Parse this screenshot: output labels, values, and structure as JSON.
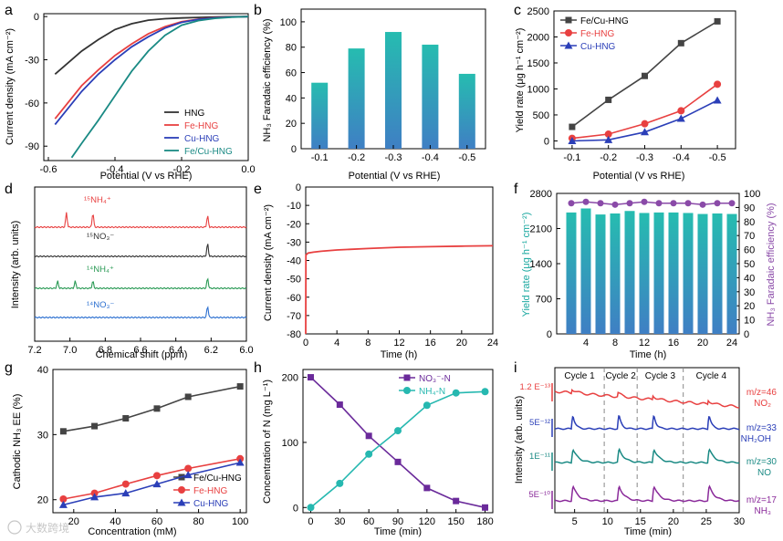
{
  "figure": {
    "watermark": "大数跨境"
  },
  "chart_data": [
    {
      "panel": "a",
      "type": "line",
      "xlabel": "Potential  (V vs RHE)",
      "ylabel": "Current density  (mA cm⁻²)",
      "xlim": [
        -0.6,
        0.0
      ],
      "ylim": [
        -100,
        2
      ],
      "xticks": [
        "-0.6",
        "-0.4",
        "-0.2",
        "0.0"
      ],
      "yticks": [
        "0",
        "-30",
        "-60",
        "-90"
      ],
      "legend_position": "bottom-right",
      "series": [
        {
          "name": "HNG",
          "color": "#333333",
          "x": [
            -0.58,
            -0.5,
            -0.45,
            -0.4,
            -0.35,
            -0.3,
            -0.25,
            -0.2,
            -0.15,
            -0.1,
            -0.05,
            0.0
          ],
          "y": [
            -40,
            -24,
            -16,
            -9,
            -5,
            -2.5,
            -1.5,
            -1,
            -0.6,
            -0.3,
            -0.1,
            0
          ]
        },
        {
          "name": "Fe-HNG",
          "color": "#e84040",
          "x": [
            -0.58,
            -0.5,
            -0.45,
            -0.4,
            -0.35,
            -0.3,
            -0.25,
            -0.2,
            -0.15,
            -0.1,
            -0.05,
            0.0
          ],
          "y": [
            -71,
            -48,
            -37,
            -27,
            -19,
            -12,
            -7,
            -3.5,
            -1.8,
            -0.8,
            -0.3,
            0
          ]
        },
        {
          "name": "Cu-HNG",
          "color": "#2b3fb8",
          "x": [
            -0.58,
            -0.5,
            -0.45,
            -0.4,
            -0.35,
            -0.3,
            -0.25,
            -0.2,
            -0.15,
            -0.1,
            -0.05,
            0.0
          ],
          "y": [
            -75,
            -52,
            -40,
            -30,
            -21,
            -14,
            -8,
            -4,
            -2,
            -0.9,
            -0.3,
            0
          ]
        },
        {
          "name": "Fe/Cu-HNG",
          "color": "#1a8a84",
          "x": [
            -0.53,
            -0.5,
            -0.45,
            -0.4,
            -0.35,
            -0.3,
            -0.25,
            -0.2,
            -0.15,
            -0.1,
            -0.05,
            0.0
          ],
          "y": [
            -98,
            -88,
            -72,
            -55,
            -38,
            -24,
            -13,
            -6,
            -2.8,
            -1.2,
            -0.4,
            0
          ]
        }
      ]
    },
    {
      "panel": "b",
      "type": "bar",
      "xlabel": "Potential (V vs RHE)",
      "ylabel": "NH₃ Faradaic efficiency (%)",
      "categories": [
        "-0.1",
        "-0.2",
        "-0.3",
        "-0.4",
        "-0.5"
      ],
      "values": [
        52,
        79,
        92,
        82,
        59
      ],
      "ylim": [
        0,
        110
      ],
      "yticks": [
        "0",
        "20",
        "40",
        "60",
        "80",
        "100"
      ],
      "colors": {
        "top": "#26bcb0",
        "bottom": "#3f7fc4"
      }
    },
    {
      "panel": "c",
      "type": "line",
      "xlabel": "Potential (V vs RHE)",
      "ylabel": "Yield rate  (μg h⁻¹ cm⁻²)",
      "categories": [
        "-0.1",
        "-0.2",
        "-0.3",
        "-0.4",
        "-0.5"
      ],
      "ylim": [
        -150,
        2500
      ],
      "yticks": [
        "0",
        "500",
        "1000",
        "1500",
        "2000",
        "2500"
      ],
      "legend_position": "top-left",
      "series": [
        {
          "name": "Fe/Cu-HNG",
          "color": "#444444",
          "marker": "square",
          "values": [
            270,
            790,
            1250,
            1880,
            2300
          ]
        },
        {
          "name": "Fe-HNG",
          "color": "#e84040",
          "marker": "circle",
          "values": [
            50,
            130,
            330,
            580,
            1090
          ]
        },
        {
          "name": "Cu-HNG",
          "color": "#2b3fb8",
          "marker": "triangle",
          "values": [
            0,
            20,
            170,
            430,
            780
          ]
        }
      ]
    },
    {
      "panel": "d",
      "type": "line",
      "xlabel": "Chemical shift (ppm)",
      "ylabel": "Intensity (arb. units)",
      "xlim": [
        7.2,
        6.0
      ],
      "xticks": [
        "7.2",
        "7.0",
        "6.8",
        "6.6",
        "6.4",
        "6.2",
        "6.0"
      ],
      "series": [
        {
          "name": "¹⁵NH₄⁺",
          "label": "¹⁵NH₄⁺",
          "color": "#e84040",
          "peaks": [
            [
              7.02,
              1.0
            ],
            [
              6.87,
              1.0
            ],
            [
              6.22,
              0.8
            ]
          ]
        },
        {
          "name": "¹⁵NO₃⁻",
          "label": "¹⁵NO₃⁻",
          "color": "#333333",
          "peaks": [
            [
              6.22,
              0.9
            ]
          ]
        },
        {
          "name": "¹⁴NH₄⁺",
          "label": "¹⁴NH₄⁺",
          "color": "#2a9a55",
          "peaks": [
            [
              7.07,
              0.5
            ],
            [
              6.97,
              0.5
            ],
            [
              6.87,
              0.5
            ],
            [
              6.22,
              0.7
            ]
          ]
        },
        {
          "name": "¹⁴NO₃⁻",
          "label": "¹⁴NO₃⁻",
          "color": "#2b6fd0",
          "peaks": [
            [
              6.22,
              0.8
            ]
          ]
        }
      ]
    },
    {
      "panel": "e",
      "type": "line",
      "xlabel": "Time (h)",
      "ylabel": "Current density  (mA cm⁻²)",
      "xlim": [
        0,
        24
      ],
      "ylim": [
        -80,
        0
      ],
      "xticks": [
        "0",
        "4",
        "8",
        "12",
        "16",
        "20",
        "24"
      ],
      "yticks": [
        "0",
        "-10",
        "-20",
        "-30",
        "-40",
        "-50",
        "-60",
        "-70",
        "-80"
      ],
      "series": [
        {
          "name": "",
          "color": "#e84040",
          "x": [
            0,
            0.02,
            0.3,
            1,
            2,
            4,
            8,
            12,
            16,
            20,
            24
          ],
          "y": [
            -80,
            -37,
            -36,
            -35.5,
            -35,
            -34.3,
            -33.5,
            -32.8,
            -32.5,
            -32.2,
            -32
          ]
        }
      ]
    },
    {
      "panel": "f",
      "type": "bar",
      "xlabel": "Time (h)",
      "ylabel": "Yield rate  (μg h⁻¹ cm⁻²)",
      "y2label": "NH₃ Faradaic efficiency (%)",
      "x": [
        2,
        4,
        6,
        8,
        10,
        12,
        14,
        16,
        18,
        20,
        22,
        24
      ],
      "values": [
        2420,
        2500,
        2380,
        2400,
        2450,
        2410,
        2420,
        2420,
        2410,
        2390,
        2400,
        2390
      ],
      "fe": [
        93,
        94,
        93,
        92,
        93,
        94,
        93,
        93,
        93,
        92,
        93,
        93
      ],
      "ylim": [
        0,
        2800
      ],
      "y2lim": [
        0,
        100
      ],
      "xticks": [
        "4",
        "8",
        "12",
        "16",
        "20",
        "24"
      ],
      "yticks": [
        "0",
        "700",
        "1400",
        "2100",
        "2800"
      ],
      "y2ticks": [
        "0",
        "10",
        "20",
        "30",
        "40",
        "50",
        "60",
        "70",
        "80",
        "90",
        "100"
      ],
      "colors": {
        "bar_top": "#26bcb0",
        "bar_bottom": "#3f7fc4",
        "fe": "#8a4aa8",
        "ylabel": "#1aa8a0"
      }
    },
    {
      "panel": "g",
      "type": "line",
      "xlabel": "Concentration    (mM)",
      "ylabel": "Cathodic NH₃ EE (%)",
      "x": [
        15,
        30,
        45,
        60,
        75,
        100
      ],
      "xlim": [
        10,
        103
      ],
      "ylim": [
        18,
        40
      ],
      "xticks": [
        "20",
        "40",
        "60",
        "80",
        "100"
      ],
      "yticks": [
        "20",
        "30",
        "40"
      ],
      "legend_position": "bottom-right",
      "series": [
        {
          "name": "Fe/Cu-HNG",
          "color": "#444444",
          "marker": "square",
          "values": [
            30.5,
            31.3,
            32.5,
            34.0,
            35.8,
            37.4
          ]
        },
        {
          "name": "Fe-HNG",
          "color": "#e84040",
          "marker": "circle",
          "values": [
            20.1,
            21.0,
            22.4,
            23.7,
            24.8,
            26.3
          ]
        },
        {
          "name": "Cu-HNG",
          "color": "#2b3fb8",
          "marker": "triangle",
          "values": [
            19.2,
            20.4,
            21.0,
            22.4,
            23.8,
            25.7
          ]
        }
      ]
    },
    {
      "panel": "h",
      "type": "line",
      "xlabel": "Time (min)",
      "ylabel": "Concentration of  N    (mg L⁻¹)",
      "x": [
        0,
        30,
        60,
        90,
        120,
        150,
        180
      ],
      "xlim": [
        -8,
        188
      ],
      "ylim": [
        -8,
        212
      ],
      "xticks": [
        "0",
        "30",
        "60",
        "90",
        "120",
        "150",
        "180"
      ],
      "yticks": [
        "0",
        "100",
        "200"
      ],
      "legend_position": "top-right",
      "series": [
        {
          "name": "NO₃⁻-N",
          "color": "#6a2a9a",
          "marker": "square",
          "values": [
            200,
            158,
            110,
            70,
            30,
            10,
            0
          ]
        },
        {
          "name": "NH₄-N",
          "color": "#26b8b0",
          "marker": "circle",
          "values": [
            0,
            37,
            82,
            118,
            157,
            176,
            178
          ]
        }
      ]
    },
    {
      "panel": "i",
      "type": "line",
      "xlabel": "Time (min)",
      "ylabel": "Intensity (arb. units)",
      "xlim": [
        2,
        30
      ],
      "xticks": [
        "5",
        "10",
        "15",
        "20",
        "25",
        "30"
      ],
      "cycles": [
        "Cycle 1",
        "Cycle 2",
        "Cycle 3",
        "Cycle 4"
      ],
      "cycle_boundaries": [
        9.5,
        14.5,
        21.5
      ],
      "series": [
        {
          "name": "NO₂",
          "mz": "m/z=46",
          "species": "NO₂",
          "scale": "1.2 E⁻¹³",
          "color": "#e84040"
        },
        {
          "name": "NH₂OH",
          "mz": "m/z=33",
          "species": "NH₂OH",
          "scale": "5E⁻¹²",
          "color": "#2b3fb8"
        },
        {
          "name": "NO",
          "mz": "m/z=30",
          "species": "NO",
          "scale": "1E⁻¹¹",
          "color": "#1a8a84"
        },
        {
          "name": "NH₃",
          "mz": "m/z=17",
          "species": "NH₃",
          "scale": "5E⁻¹⁰",
          "color": "#8a2a9a"
        }
      ]
    }
  ]
}
